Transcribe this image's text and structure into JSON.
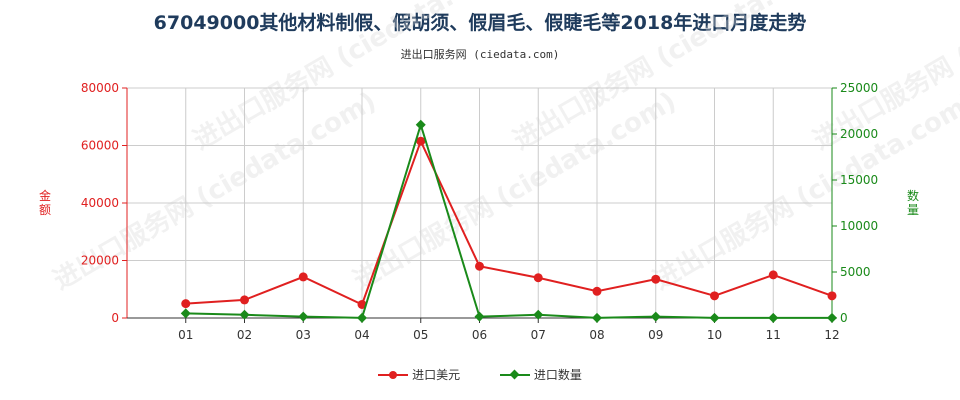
{
  "title": "67049000其他材料制假、假胡须、假眉毛、假睫毛等2018年进口月度走势",
  "subtitle": "进出口服务网 (ciedata.com)",
  "watermark": "进出口服务网 (ciedata.com)",
  "colors": {
    "left_axis": "#e02020",
    "right_axis": "#1a8a1a",
    "grid": "#cccccc"
  },
  "chart_data": {
    "type": "line",
    "categories": [
      "01",
      "02",
      "03",
      "04",
      "05",
      "06",
      "07",
      "08",
      "09",
      "10",
      "11",
      "12"
    ],
    "y_left": {
      "label": "金额",
      "ylim": [
        0,
        80000
      ],
      "ticks": [
        0,
        20000,
        40000,
        60000,
        80000
      ]
    },
    "y_right": {
      "label": "数量",
      "ylim": [
        0,
        25000
      ],
      "ticks": [
        0,
        5000,
        10000,
        15000,
        20000,
        25000
      ]
    },
    "series": [
      {
        "name": "进口美元",
        "axis": "left",
        "color": "#e02020",
        "marker": "circle",
        "values": [
          5000,
          6300,
          14300,
          4700,
          61500,
          18000,
          14000,
          9300,
          13500,
          7700,
          15000,
          7700
        ]
      },
      {
        "name": "进口数量",
        "axis": "right",
        "color": "#1a8a1a",
        "marker": "diamond",
        "values": [
          500,
          350,
          150,
          20,
          21000,
          150,
          350,
          20,
          150,
          20,
          20,
          20
        ]
      }
    ],
    "grid": true,
    "legend_position": "bottom-center"
  }
}
